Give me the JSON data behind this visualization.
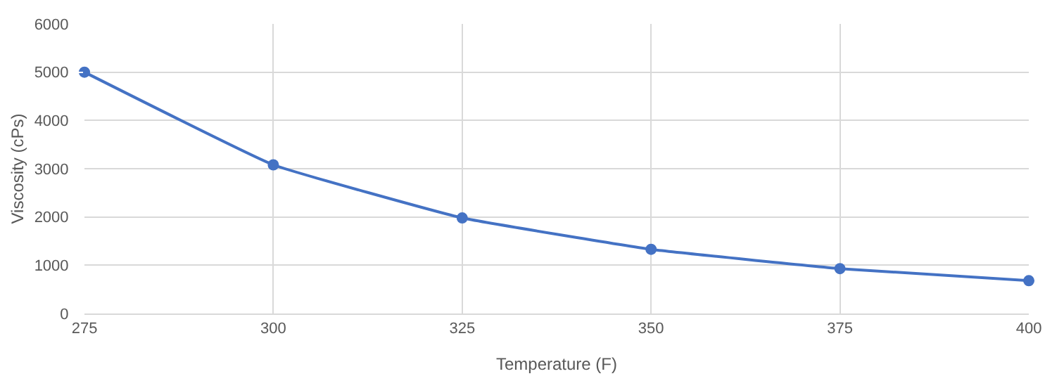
{
  "chart_data": {
    "type": "line",
    "xlabel": "Temperature (F)",
    "ylabel": "Viscosity (cPs)",
    "x": [
      275,
      300,
      325,
      350,
      375,
      400
    ],
    "series": [
      {
        "color": "#4472c4",
        "values": [
          5000,
          3080,
          1980,
          1330,
          930,
          680
        ]
      }
    ],
    "xlim": [
      275,
      400
    ],
    "xticks": [
      275,
      300,
      325,
      350,
      375,
      400
    ],
    "ylim": [
      0,
      6000
    ],
    "yticks": [
      0,
      1000,
      2000,
      3000,
      4000,
      5000,
      6000
    ],
    "grid": true,
    "marker": "circle",
    "line_style": "solid",
    "legend": false
  }
}
